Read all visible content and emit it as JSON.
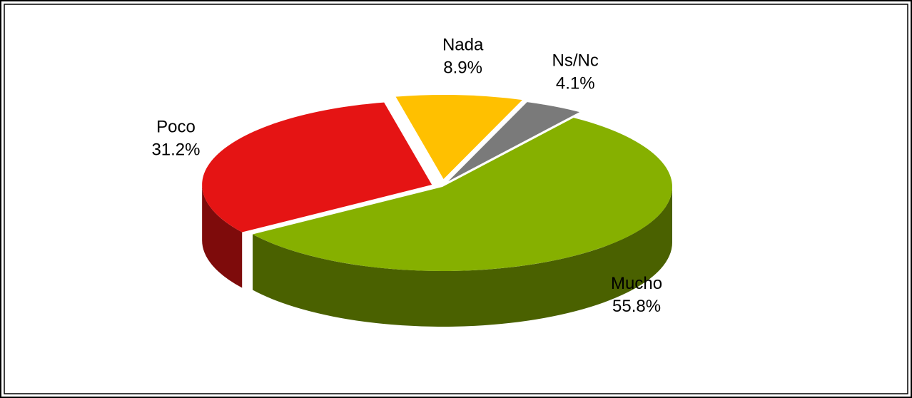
{
  "chart_data": {
    "type": "pie",
    "categories": [
      "Nada",
      "Ns/Nc",
      "Mucho",
      "Poco"
    ],
    "values": [
      8.9,
      4.1,
      55.8,
      31.2
    ],
    "value_labels": [
      "8.9%",
      "4.1%",
      "55.8%",
      "31.2%"
    ],
    "colors": [
      "#ffc000",
      "#7a7a7a",
      "#86b000",
      "#e51414"
    ]
  }
}
